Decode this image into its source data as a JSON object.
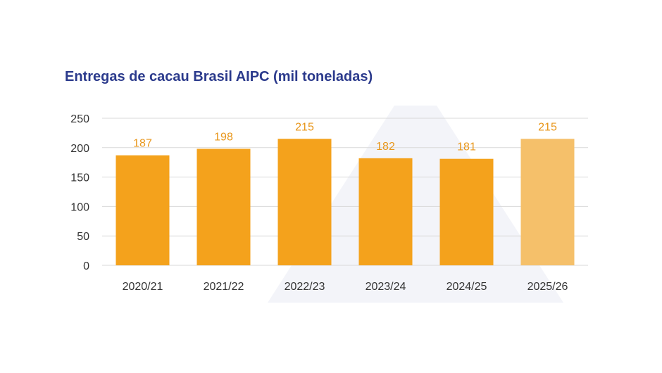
{
  "chart_data": {
    "type": "bar",
    "title": "Entregas de cacau Brasil AIPC (mil toneladas)",
    "categories": [
      "2020/21",
      "2021/22",
      "2022/23",
      "2023/24",
      "2024/25",
      "2025/26"
    ],
    "values": [
      187,
      198,
      215,
      182,
      181,
      215
    ],
    "data_labels": [
      "187",
      "198",
      "215",
      "182",
      "181",
      "215"
    ],
    "y_ticks": [
      "0",
      "50",
      "100",
      "150",
      "200",
      "250"
    ],
    "y_tick_values": [
      0,
      50,
      100,
      150,
      200,
      250
    ],
    "ylim": [
      0,
      250
    ],
    "grid": true,
    "xlabel": "",
    "ylabel": "",
    "colors": {
      "bar": "#f4a21c",
      "bar_highlight": "#f5c06a",
      "data_label": "#e8961a",
      "title": "#2b3a8c",
      "grid": "#d9d9d9",
      "axis_text": "#333333"
    },
    "highlight_index": 5
  }
}
